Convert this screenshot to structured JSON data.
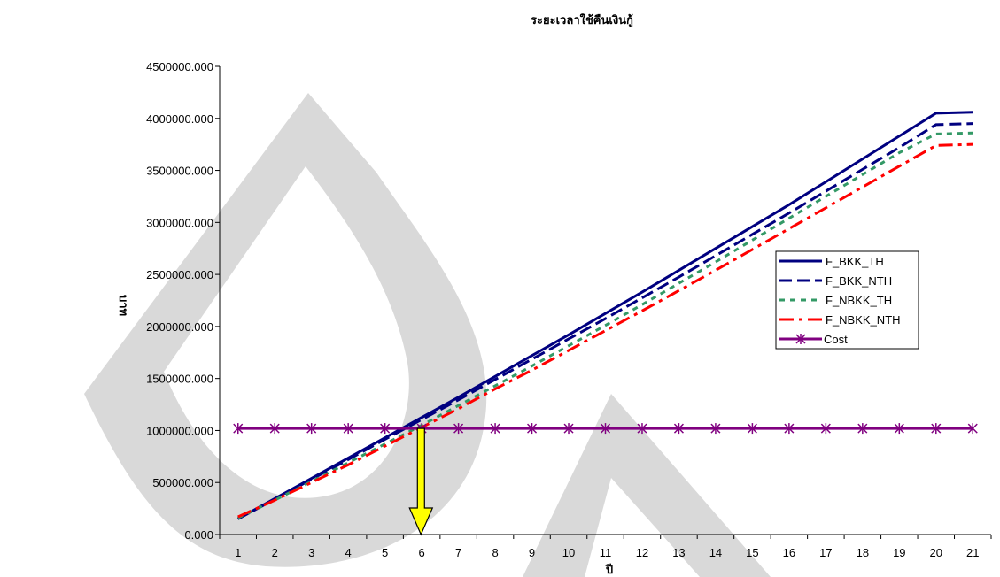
{
  "chart_data": {
    "type": "line",
    "title": "ระยะเวลาใช้คืนเงินกู้",
    "xlabel": "ปี",
    "ylabel": "บาท",
    "categories": [
      "1",
      "2",
      "3",
      "4",
      "5",
      "6",
      "7",
      "8",
      "9",
      "10",
      "11",
      "12",
      "13",
      "14",
      "15",
      "16",
      "17",
      "18",
      "19",
      "20",
      "21"
    ],
    "yticks": [
      "0.000",
      "500000.000",
      "1000000.000",
      "1500000.000",
      "2000000.000",
      "2500000.000",
      "3000000.000",
      "3500000.000",
      "4000000.000",
      "4500000.000"
    ],
    "ylim": [
      0,
      4500000
    ],
    "grid": false,
    "legend_position": "right",
    "series": [
      {
        "name": "F_BKK_TH",
        "color": "#000080",
        "style": "solid",
        "values": [
          150000,
          345000,
          540000,
          735000,
          930000,
          1125000,
          1320000,
          1520000,
          1720000,
          1920000,
          2125000,
          2330000,
          2540000,
          2750000,
          2960000,
          3170000,
          3390000,
          3610000,
          3830000,
          4050000,
          4060000
        ]
      },
      {
        "name": "F_BKK_NTH",
        "color": "#000080",
        "style": "dash",
        "values": [
          150000,
          340000,
          530000,
          720000,
          915000,
          1105000,
          1295000,
          1490000,
          1685000,
          1880000,
          2075000,
          2275000,
          2475000,
          2680000,
          2885000,
          3090000,
          3300000,
          3510000,
          3720000,
          3940000,
          3950000
        ]
      },
      {
        "name": "F_NBKK_TH",
        "color": "#339966",
        "style": "dot",
        "values": [
          160000,
          330000,
          510000,
          690000,
          870000,
          1050000,
          1240000,
          1430000,
          1620000,
          1815000,
          2010000,
          2210000,
          2415000,
          2620000,
          2830000,
          3040000,
          3250000,
          3460000,
          3670000,
          3850000,
          3860000
        ]
      },
      {
        "name": "F_NBKK_NTH",
        "color": "#FF0000",
        "style": "dashdot",
        "values": [
          170000,
          330000,
          500000,
          670000,
          850000,
          1030000,
          1210000,
          1400000,
          1580000,
          1770000,
          1960000,
          2150000,
          2345000,
          2540000,
          2740000,
          2940000,
          3140000,
          3340000,
          3540000,
          3740000,
          3750000
        ]
      },
      {
        "name": "Cost",
        "color": "#800080",
        "style": "star",
        "values": [
          1020000,
          1020000,
          1020000,
          1020000,
          1020000,
          1020000,
          1020000,
          1020000,
          1020000,
          1020000,
          1020000,
          1020000,
          1020000,
          1020000,
          1020000,
          1020000,
          1020000,
          1020000,
          1020000,
          1020000,
          1020000
        ]
      }
    ],
    "annotation": {
      "type": "arrow",
      "color": "#FFFF00",
      "x": 5.48,
      "y_from": 1020000,
      "y_to": 0
    }
  }
}
